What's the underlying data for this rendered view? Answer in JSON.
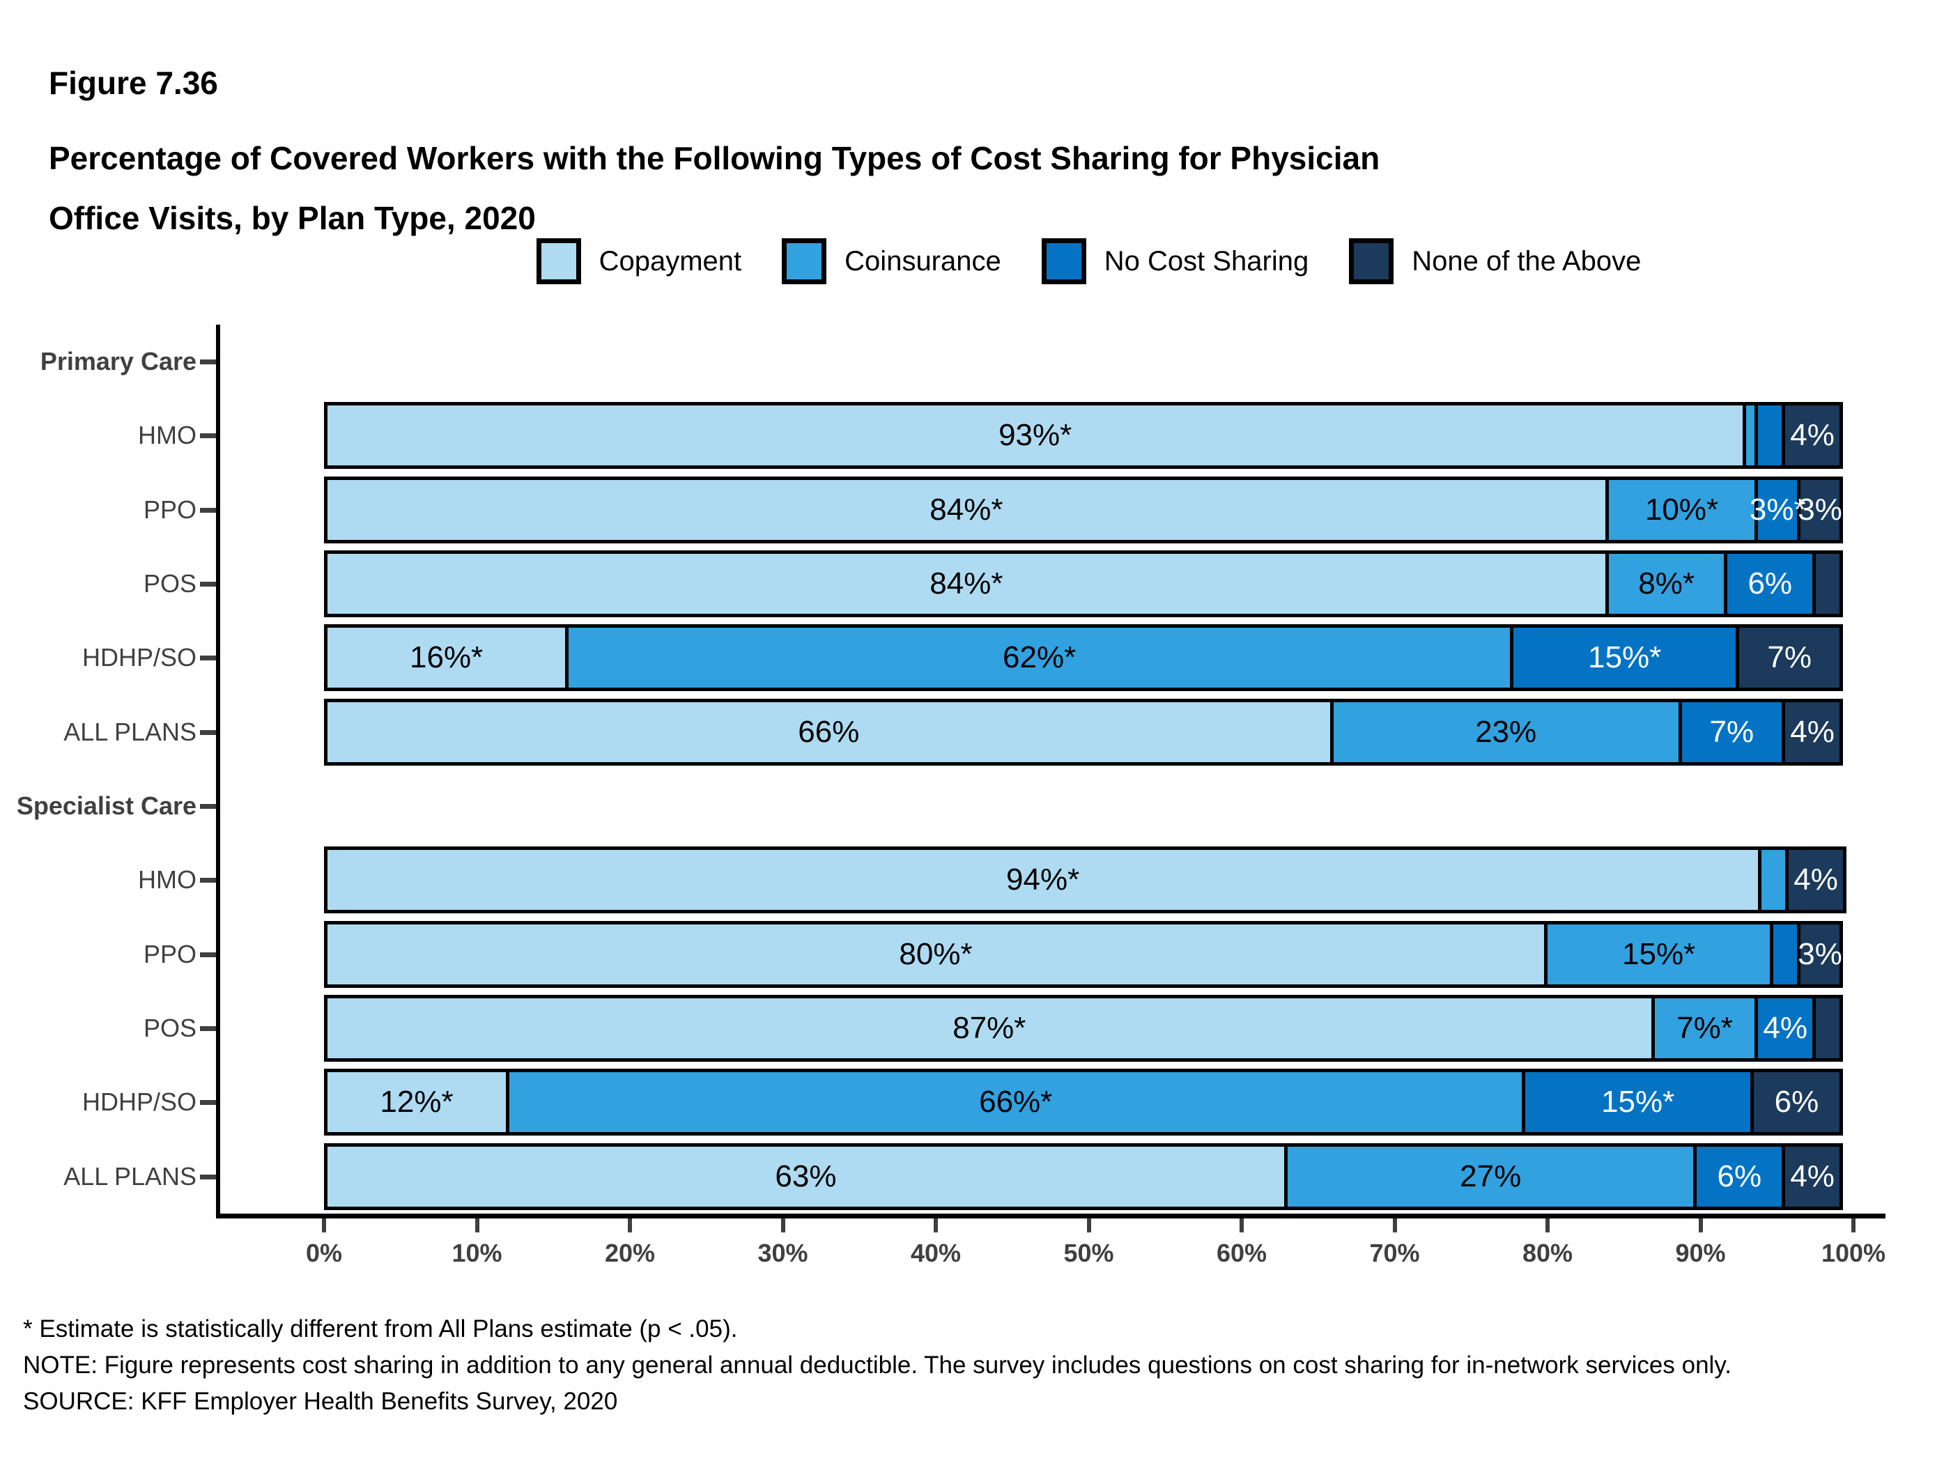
{
  "figure_label": "Figure 7.36",
  "title_lines": [
    "Percentage of Covered Workers with the Following Types of Cost Sharing for Physician",
    "Office Visits, by Plan Type, 2020"
  ],
  "legend": [
    {
      "label": "Copayment",
      "color": "#AEDBF2"
    },
    {
      "label": "Coinsurance",
      "color": "#31A1E0"
    },
    {
      "label": "No Cost Sharing",
      "color": "#0473C4"
    },
    {
      "label": "None of the Above",
      "color": "#1B3A5C"
    }
  ],
  "chart_data": {
    "type": "bar",
    "stacked": true,
    "orientation": "horizontal",
    "xlim": [
      0,
      100
    ],
    "grid": false,
    "legend_position": "top",
    "series_names": [
      "Copayment",
      "Coinsurance",
      "No Cost Sharing",
      "None of the Above"
    ],
    "groups": [
      {
        "header": "Primary Care",
        "rows": [
          {
            "label": "HMO",
            "values": [
              93,
              1,
              2,
              4
            ],
            "segment_labels": [
              "93%*",
              "",
              "",
              "4%"
            ]
          },
          {
            "label": "PPO",
            "values": [
              84,
              10,
              3,
              3
            ],
            "segment_labels": [
              "84%*",
              "10%*",
              "3%*",
              "3%"
            ]
          },
          {
            "label": "POS",
            "values": [
              84,
              8,
              6,
              2
            ],
            "segment_labels": [
              "84%*",
              "8%*",
              "6%",
              ""
            ]
          },
          {
            "label": "HDHP/SO",
            "values": [
              16,
              62,
              15,
              7
            ],
            "segment_labels": [
              "16%*",
              "62%*",
              "15%*",
              "7%"
            ]
          },
          {
            "label": "ALL PLANS",
            "values": [
              66,
              23,
              7,
              4
            ],
            "segment_labels": [
              "66%",
              "23%",
              "7%",
              "4%"
            ]
          }
        ]
      },
      {
        "header": "Specialist Care",
        "rows": [
          {
            "label": "HMO",
            "values": [
              94,
              2,
              0,
              4
            ],
            "segment_labels": [
              "94%*",
              "",
              "",
              "4%"
            ]
          },
          {
            "label": "PPO",
            "values": [
              80,
              15,
              2,
              3
            ],
            "segment_labels": [
              "80%*",
              "15%*",
              "",
              "3%"
            ]
          },
          {
            "label": "POS",
            "values": [
              87,
              7,
              4,
              2
            ],
            "segment_labels": [
              "87%*",
              "7%*",
              "4%",
              ""
            ]
          },
          {
            "label": "HDHP/SO",
            "values": [
              12,
              66,
              15,
              6
            ],
            "segment_labels": [
              "12%*",
              "66%*",
              "15%*",
              "6%"
            ]
          },
          {
            "label": "ALL PLANS",
            "values": [
              63,
              27,
              6,
              4
            ],
            "segment_labels": [
              "63%",
              "27%",
              "6%",
              "4%"
            ]
          }
        ]
      }
    ],
    "x_tick_labels": [
      "0%",
      "10%",
      "20%",
      "30%",
      "40%",
      "50%",
      "60%",
      "70%",
      "80%",
      "90%",
      "100%"
    ]
  },
  "footnotes": [
    "* Estimate is statistically different from All Plans estimate (p < .05).",
    "NOTE: Figure represents cost sharing in addition to any general annual deductible. The survey includes questions on cost sharing for in-network services only.",
    "SOURCE: KFF Employer Health Benefits Survey, 2020"
  ]
}
